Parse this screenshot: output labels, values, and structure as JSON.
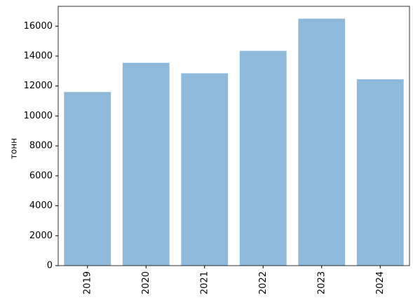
{
  "chart_data": {
    "type": "bar",
    "ylabel": "тонн",
    "categories": [
      "2019",
      "2020",
      "2021",
      "2022",
      "2023",
      "2024"
    ],
    "values": [
      11600,
      13550,
      12850,
      14350,
      16500,
      12450
    ],
    "color": "#8fb9da",
    "ylim": [
      0,
      17325
    ],
    "yticks": [
      0,
      2000,
      4000,
      6000,
      8000,
      10000,
      12000,
      14000,
      16000
    ],
    "grid": false
  }
}
